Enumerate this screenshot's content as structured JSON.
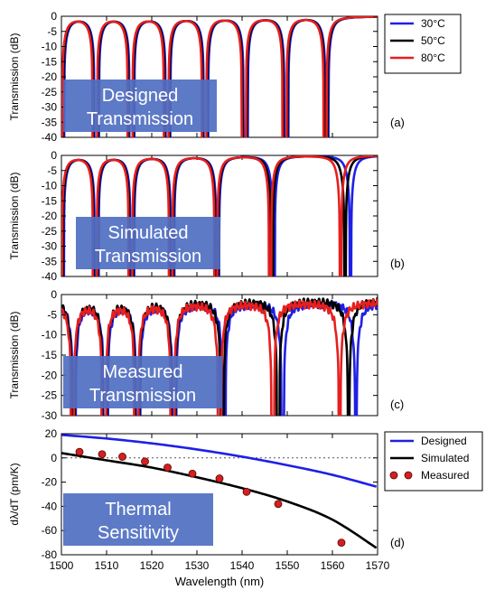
{
  "chart_data": [
    {
      "panel_label": "(a)",
      "type": "line",
      "ylabel": "Transmission (dB)",
      "ylim": [
        -40,
        0
      ],
      "yticks": [
        0,
        -5,
        -10,
        -15,
        -20,
        -25,
        -30,
        -35,
        -40
      ],
      "xlim": [
        1500,
        1570
      ],
      "overlay_text": [
        "Designed",
        "Transmission"
      ],
      "legend": {
        "placement": "outside-right",
        "entries": [
          {
            "name": "30°C",
            "color": "#1f1fe6",
            "marker": "line"
          },
          {
            "name": "50°C",
            "color": "#000000",
            "marker": "line"
          },
          {
            "name": "80°C",
            "color": "#e61f1f",
            "marker": "line"
          }
        ]
      },
      "series": [
        {
          "name": "30°C",
          "color": "#1f1fe6",
          "notches_nm": [
            1500.2,
            1507.8,
            1515.6,
            1523.6,
            1532.0,
            1540.8,
            1549.8,
            1558.8
          ],
          "depth_db": -40,
          "fwhm_nm": 3.2
        },
        {
          "name": "50°C",
          "color": "#000000",
          "notches_nm": [
            1500.0,
            1507.6,
            1515.4,
            1523.4,
            1531.8,
            1540.6,
            1549.6,
            1558.6
          ],
          "depth_db": -40,
          "fwhm_nm": 3.2
        },
        {
          "name": "80°C",
          "color": "#e61f1f",
          "notches_nm": [
            1499.8,
            1507.4,
            1515.2,
            1523.2,
            1531.6,
            1540.4,
            1549.4,
            1558.4
          ],
          "depth_db": -40,
          "fwhm_nm": 3.2
        }
      ]
    },
    {
      "panel_label": "(b)",
      "type": "line",
      "ylabel": "Transmission (dB)",
      "ylim": [
        -40,
        0
      ],
      "yticks": [
        0,
        -5,
        -10,
        -15,
        -20,
        -25,
        -30,
        -35,
        -40
      ],
      "xlim": [
        1500,
        1570
      ],
      "overlay_text": [
        "Simulated",
        "Transmission"
      ],
      "series": [
        {
          "name": "30°C",
          "color": "#1f1fe6",
          "notches_nm": [
            1500.2,
            1507.8,
            1515.7,
            1524.6,
            1534.6,
            1547.0,
            1564.0
          ],
          "depth_db": -40,
          "fwhm_nm": 3.0
        },
        {
          "name": "50°C",
          "color": "#000000",
          "notches_nm": [
            1500.0,
            1507.6,
            1515.5,
            1524.4,
            1534.4,
            1546.6,
            1562.8
          ],
          "depth_db": -40,
          "fwhm_nm": 3.0
        },
        {
          "name": "80°C",
          "color": "#e61f1f",
          "notches_nm": [
            1499.8,
            1507.4,
            1515.3,
            1524.2,
            1534.2,
            1546.2,
            1561.8
          ],
          "depth_db": -40,
          "fwhm_nm": 3.0
        }
      ]
    },
    {
      "panel_label": "(c)",
      "type": "line",
      "ylabel": "Transmission (dB)",
      "ylim": [
        -30,
        0
      ],
      "yticks": [
        0,
        -5,
        -10,
        -15,
        -20,
        -25,
        -30
      ],
      "xlim": [
        1500,
        1570
      ],
      "overlay_text": [
        "Measured",
        "Transmission"
      ],
      "series": [
        {
          "name": "30°C",
          "color": "#1f1fe6",
          "notches": [
            [
              1502.8,
              -16
            ],
            [
              1509.8,
              -16
            ],
            [
              1517.0,
              -16
            ],
            [
              1525.0,
              -22
            ],
            [
              1536.0,
              -28
            ],
            [
              1549.0,
              -26
            ],
            [
              1565.2,
              -23
            ]
          ],
          "baseline_db": -2,
          "fwhm_nm": 3.2
        },
        {
          "name": "50°C",
          "color": "#000000",
          "notches": [
            [
              1502.6,
              -16
            ],
            [
              1509.6,
              -16
            ],
            [
              1516.8,
              -16
            ],
            [
              1524.8,
              -22
            ],
            [
              1535.6,
              -26
            ],
            [
              1548.0,
              -25
            ],
            [
              1563.6,
              -22
            ]
          ],
          "baseline_db": -1.5,
          "fwhm_nm": 3.2
        },
        {
          "name": "80°C",
          "color": "#e61f1f",
          "notches": [
            [
              1502.4,
              -16
            ],
            [
              1509.4,
              -16
            ],
            [
              1516.6,
              -16
            ],
            [
              1524.6,
              -22
            ],
            [
              1535.0,
              -25
            ],
            [
              1546.8,
              -27
            ],
            [
              1561.6,
              -23
            ]
          ],
          "baseline_db": -2,
          "fwhm_nm": 3.2
        }
      ]
    },
    {
      "panel_label": "(d)",
      "type": "line",
      "ylabel": "dλ/dT (pm/K)",
      "xlabel": "Wavelength (nm)",
      "ylim": [
        -80,
        20
      ],
      "yticks": [
        20,
        0,
        -20,
        -40,
        -60,
        -80
      ],
      "xlim": [
        1500,
        1570
      ],
      "xticks": [
        1500,
        1510,
        1520,
        1530,
        1540,
        1550,
        1560,
        1570
      ],
      "overlay_text": [
        "Thermal",
        "Sensitivity"
      ],
      "zero_line": true,
      "legend": {
        "placement": "outside-right",
        "entries": [
          {
            "name": "Designed",
            "color": "#1f1fe6",
            "marker": "line"
          },
          {
            "name": "Simulated",
            "color": "#000000",
            "marker": "line"
          },
          {
            "name": "Measured",
            "color": "#d32020",
            "marker": "dots"
          }
        ]
      },
      "series": [
        {
          "name": "Designed",
          "color": "#1f1fe6",
          "x": [
            1500,
            1510,
            1520,
            1530,
            1540,
            1550,
            1560,
            1570
          ],
          "y": [
            19,
            16,
            12,
            7,
            1,
            -6,
            -14,
            -24
          ]
        },
        {
          "name": "Simulated",
          "color": "#000000",
          "x": [
            1500,
            1510,
            1520,
            1530,
            1540,
            1550,
            1560,
            1570
          ],
          "y": [
            4,
            -2,
            -8,
            -16,
            -25,
            -36,
            -51,
            -75
          ]
        },
        {
          "name": "Measured",
          "color": "#d32020",
          "type": "scatter",
          "x": [
            1504,
            1509,
            1513.5,
            1518.5,
            1523.5,
            1529,
            1535,
            1541,
            1548,
            1562
          ],
          "y": [
            5,
            3,
            1,
            -3,
            -8,
            -13,
            -17,
            -28,
            -38,
            -70
          ]
        }
      ]
    }
  ]
}
